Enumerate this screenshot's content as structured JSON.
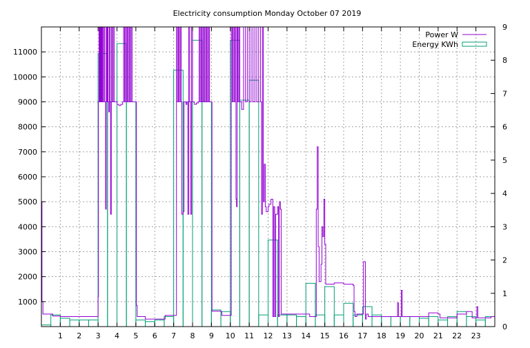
{
  "chart_data": {
    "type": "bar",
    "title": "Electricity consumption Monday October 07 2019",
    "xlabel": "",
    "ylabel": "",
    "y2label": "",
    "xlim": [
      0,
      24
    ],
    "ylim": [
      0,
      12000
    ],
    "y2lim": [
      0,
      9
    ],
    "x_ticks": [
      "1",
      "2",
      "3",
      "4",
      "5",
      "6",
      "7",
      "8",
      "9",
      "10",
      "11",
      "12",
      "13",
      "14",
      "15",
      "16",
      "17",
      "18",
      "19",
      "20",
      "21",
      "22",
      "23"
    ],
    "y_ticks": [
      "1000",
      "2000",
      "3000",
      "4000",
      "5000",
      "6000",
      "7000",
      "8000",
      "9000",
      "10000",
      "11000"
    ],
    "y2_ticks": [
      "0",
      "1",
      "2",
      "3",
      "4",
      "5",
      "6",
      "7",
      "8",
      "9"
    ],
    "grid": true,
    "legend_position": "top-right",
    "colors": {
      "power": "#9400d3",
      "energy": "#009e73"
    },
    "series": [
      {
        "name": "Power W",
        "type": "line",
        "axis": "left",
        "points": [
          [
            0,
            5000
          ],
          [
            0.03,
            1000
          ],
          [
            0.08,
            500
          ],
          [
            0.5,
            500
          ],
          [
            0.6,
            420
          ],
          [
            1,
            400
          ],
          [
            2,
            400
          ],
          [
            2.9,
            400
          ],
          [
            3.0,
            1200
          ],
          [
            3.02,
            9000
          ],
          [
            3.05,
            12000
          ],
          [
            3.08,
            9000
          ],
          [
            3.1,
            12000
          ],
          [
            3.13,
            9000
          ],
          [
            3.16,
            12000
          ],
          [
            3.19,
            9000
          ],
          [
            3.22,
            12000
          ],
          [
            3.25,
            9000
          ],
          [
            3.3,
            12000
          ],
          [
            3.35,
            9000
          ],
          [
            3.4,
            4700
          ],
          [
            3.43,
            12000
          ],
          [
            3.47,
            9000
          ],
          [
            3.5,
            12000
          ],
          [
            3.53,
            9000
          ],
          [
            3.57,
            8600
          ],
          [
            3.6,
            12000
          ],
          [
            3.63,
            9000
          ],
          [
            3.66,
            4500
          ],
          [
            3.7,
            12000
          ],
          [
            3.75,
            9000
          ],
          [
            3.8,
            12000
          ],
          [
            3.85,
            9000
          ],
          [
            3.9,
            9000
          ],
          [
            4.0,
            8900
          ],
          [
            4.1,
            8850
          ],
          [
            4.2,
            8900
          ],
          [
            4.3,
            9000
          ],
          [
            4.35,
            12000
          ],
          [
            4.4,
            9000
          ],
          [
            4.45,
            12000
          ],
          [
            4.5,
            9000
          ],
          [
            4.55,
            12000
          ],
          [
            4.6,
            9000
          ],
          [
            4.65,
            12000
          ],
          [
            4.7,
            9000
          ],
          [
            4.75,
            12000
          ],
          [
            4.8,
            9000
          ],
          [
            4.9,
            9000
          ],
          [
            5.0,
            9000
          ],
          [
            5.03,
            850
          ],
          [
            5.07,
            400
          ],
          [
            5.4,
            400
          ],
          [
            5.5,
            300
          ],
          [
            6.0,
            300
          ],
          [
            6.5,
            300
          ],
          [
            6.55,
            450
          ],
          [
            7.0,
            450
          ],
          [
            7.1,
            450
          ],
          [
            7.15,
            12000
          ],
          [
            7.2,
            9000
          ],
          [
            7.25,
            12000
          ],
          [
            7.3,
            9000
          ],
          [
            7.35,
            12000
          ],
          [
            7.4,
            9000
          ],
          [
            7.43,
            4500
          ],
          [
            7.5,
            4600
          ],
          [
            7.55,
            9000
          ],
          [
            7.6,
            9000
          ],
          [
            7.65,
            8900
          ],
          [
            7.7,
            9000
          ],
          [
            7.75,
            4500
          ],
          [
            7.8,
            12000
          ],
          [
            7.85,
            9000
          ],
          [
            7.9,
            4500
          ],
          [
            7.95,
            12000
          ],
          [
            8.0,
            9000
          ],
          [
            8.1,
            8900
          ],
          [
            8.2,
            8950
          ],
          [
            8.3,
            9000
          ],
          [
            8.35,
            12000
          ],
          [
            8.4,
            9000
          ],
          [
            8.45,
            12000
          ],
          [
            8.5,
            9000
          ],
          [
            8.55,
            12000
          ],
          [
            8.6,
            9000
          ],
          [
            8.65,
            12000
          ],
          [
            8.7,
            9000
          ],
          [
            8.75,
            12000
          ],
          [
            8.8,
            9000
          ],
          [
            8.85,
            12000
          ],
          [
            8.9,
            9000
          ],
          [
            9.0,
            9000
          ],
          [
            9.03,
            620
          ],
          [
            9.5,
            600
          ],
          [
            9.55,
            450
          ],
          [
            10.0,
            450
          ],
          [
            10.05,
            12000
          ],
          [
            10.1,
            9000
          ],
          [
            10.15,
            12000
          ],
          [
            10.2,
            9000
          ],
          [
            10.25,
            12000
          ],
          [
            10.3,
            5100
          ],
          [
            10.33,
            4800
          ],
          [
            10.36,
            12000
          ],
          [
            10.4,
            9000
          ],
          [
            10.45,
            12000
          ],
          [
            10.5,
            9000
          ],
          [
            10.6,
            8700
          ],
          [
            10.7,
            12000
          ],
          [
            10.8,
            9000
          ],
          [
            10.9,
            12000
          ],
          [
            11.0,
            9000
          ],
          [
            11.1,
            12000
          ],
          [
            11.2,
            9000
          ],
          [
            11.3,
            12000
          ],
          [
            11.4,
            9000
          ],
          [
            11.5,
            12000
          ],
          [
            11.6,
            9000
          ],
          [
            11.65,
            4500
          ],
          [
            11.7,
            12000
          ],
          [
            11.75,
            5000
          ],
          [
            11.8,
            6500
          ],
          [
            11.85,
            4800
          ],
          [
            11.9,
            4600
          ],
          [
            12.0,
            4800
          ],
          [
            12.05,
            4900
          ],
          [
            12.1,
            4900
          ],
          [
            12.15,
            5100
          ],
          [
            12.2,
            5100
          ],
          [
            12.25,
            400
          ],
          [
            12.3,
            4800
          ],
          [
            12.35,
            400
          ],
          [
            12.4,
            4500
          ],
          [
            12.5,
            4800
          ],
          [
            12.55,
            400
          ],
          [
            12.6,
            5000
          ],
          [
            12.65,
            4700
          ],
          [
            12.7,
            500
          ],
          [
            13,
            500
          ],
          [
            14,
            500
          ],
          [
            14.2,
            400
          ],
          [
            14.5,
            400
          ],
          [
            14.55,
            4700
          ],
          [
            14.6,
            7200
          ],
          [
            14.65,
            3200
          ],
          [
            14.7,
            1800
          ],
          [
            14.8,
            2500
          ],
          [
            14.85,
            4000
          ],
          [
            14.9,
            3600
          ],
          [
            14.95,
            5100
          ],
          [
            15.0,
            3300
          ],
          [
            15.05,
            1700
          ],
          [
            15.5,
            1750
          ],
          [
            16.0,
            1700
          ],
          [
            16.5,
            1650
          ],
          [
            16.55,
            600
          ],
          [
            16.6,
            400
          ],
          [
            16.7,
            500
          ],
          [
            17.0,
            500
          ],
          [
            17.05,
            2600
          ],
          [
            17.1,
            2600
          ],
          [
            17.15,
            300
          ],
          [
            17.2,
            500
          ],
          [
            17.3,
            400
          ],
          [
            18,
            400
          ],
          [
            18.8,
            400
          ],
          [
            18.85,
            950
          ],
          [
            18.9,
            400
          ],
          [
            19.0,
            400
          ],
          [
            19.05,
            1450
          ],
          [
            19.1,
            400
          ],
          [
            19.5,
            400
          ],
          [
            20,
            400
          ],
          [
            20.5,
            550
          ],
          [
            21,
            500
          ],
          [
            21.1,
            350
          ],
          [
            21.5,
            350
          ],
          [
            22,
            500
          ],
          [
            22.5,
            600
          ],
          [
            22.8,
            350
          ],
          [
            23,
            350
          ],
          [
            23.05,
            800
          ],
          [
            23.1,
            350
          ],
          [
            23.5,
            350
          ],
          [
            23.8,
            400
          ],
          [
            24,
            500
          ]
        ]
      },
      {
        "name": "Energy KWh",
        "type": "bar",
        "axis": "right",
        "width": 0.5,
        "bars": [
          [
            0,
            0.05
          ],
          [
            0.5,
            0.35
          ],
          [
            1,
            0.25
          ],
          [
            1.5,
            0.2
          ],
          [
            2,
            0.2
          ],
          [
            2.5,
            0.2
          ],
          [
            3,
            8.2
          ],
          [
            3.5,
            6.75
          ],
          [
            4,
            8.5
          ],
          [
            4.5,
            6.75
          ],
          [
            5,
            0.2
          ],
          [
            5.5,
            0.15
          ],
          [
            6,
            0.2
          ],
          [
            6.5,
            0.3
          ],
          [
            7,
            7.7
          ],
          [
            7.5,
            6.75
          ],
          [
            8,
            8.6
          ],
          [
            8.5,
            6.75
          ],
          [
            9,
            0.5
          ],
          [
            9.5,
            0.45
          ],
          [
            10,
            8.6
          ],
          [
            10.5,
            6.8
          ],
          [
            11,
            7.4
          ],
          [
            11.5,
            0.35
          ],
          [
            12,
            2.6
          ],
          [
            12.5,
            0.35
          ],
          [
            13,
            0.35
          ],
          [
            13.5,
            0.3
          ],
          [
            14,
            1.3
          ],
          [
            14.5,
            0.35
          ],
          [
            15,
            1.2
          ],
          [
            15.5,
            0.35
          ],
          [
            16,
            0.7
          ],
          [
            16.5,
            0.35
          ],
          [
            17,
            0.6
          ],
          [
            17.5,
            0.35
          ],
          [
            18,
            0.3
          ],
          [
            18.5,
            0.3
          ],
          [
            19,
            0.3
          ],
          [
            19.5,
            0.3
          ],
          [
            20,
            0.25
          ],
          [
            20.5,
            0.3
          ],
          [
            21,
            0.2
          ],
          [
            21.5,
            0.3
          ],
          [
            22,
            0.45
          ],
          [
            22.5,
            0.3
          ],
          [
            23,
            0.2
          ],
          [
            23.5,
            0.3
          ]
        ]
      }
    ]
  }
}
